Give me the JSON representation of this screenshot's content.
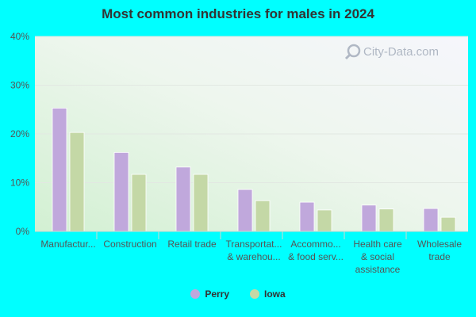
{
  "chart_data": {
    "type": "bar",
    "title": "Most common industries for males in 2024",
    "categories": [
      [
        "Manufactur..."
      ],
      [
        "Construction"
      ],
      [
        "Retail trade"
      ],
      [
        "Transportat...",
        "& warehou..."
      ],
      [
        "Accommo...",
        "& food serv..."
      ],
      [
        "Health care",
        "& social",
        "assistance"
      ],
      [
        "Wholesale",
        "trade"
      ]
    ],
    "series": [
      {
        "name": "Perry",
        "color": "#c0a8dc",
        "values": [
          25.3,
          16.2,
          13.2,
          8.6,
          6.0,
          5.4,
          4.7
        ]
      },
      {
        "name": "Iowa",
        "color": "#c4d8a6",
        "values": [
          20.3,
          11.7,
          11.7,
          6.3,
          4.4,
          4.6,
          2.9
        ]
      }
    ],
    "yticks": [
      "0%",
      "10%",
      "20%",
      "30%",
      "40%"
    ],
    "ylim": [
      0,
      40
    ],
    "grid": true,
    "legend_position": "bottom-center"
  },
  "watermark": {
    "text": "City-Data.com"
  }
}
